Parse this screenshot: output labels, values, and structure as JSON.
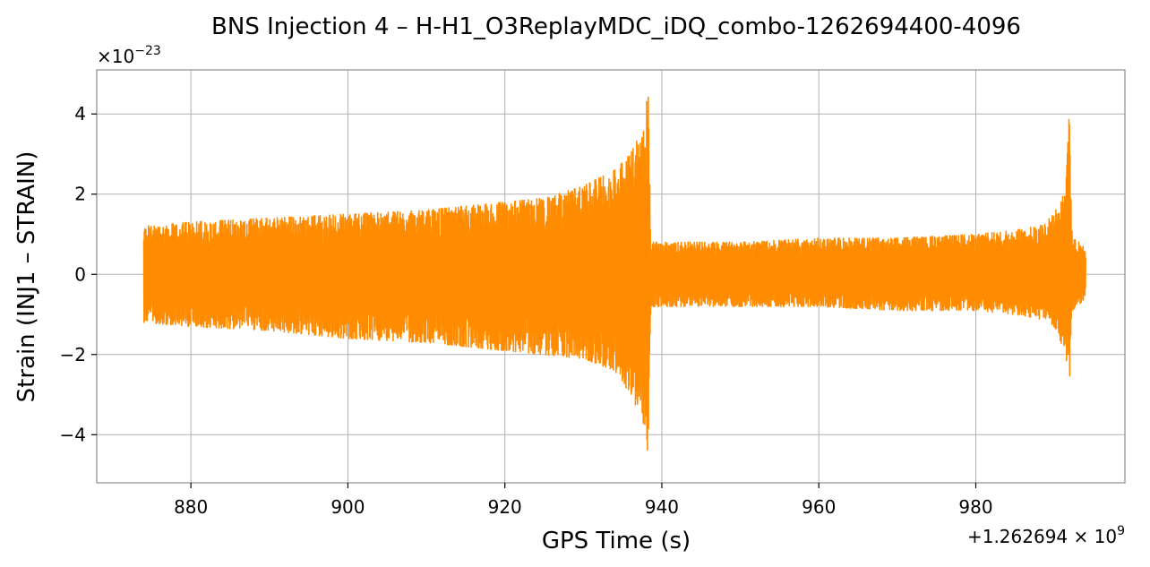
{
  "chart_data": {
    "type": "line",
    "title": "BNS Injection 4 – H-H1_O3ReplayMDC_iDQ_combo-1262694400-4096",
    "xlabel": "GPS Time (s)",
    "ylabel": "Strain (INJ1 – STRAIN)",
    "x_offset_label": "+1.262694 × 10",
    "x_offset_exponent": "9",
    "y_scale_label": "×10",
    "y_scale_exponent": "−23",
    "xlim": [
      1262694868,
      1262694999
    ],
    "ylim": [
      -5.2,
      5.1
    ],
    "x_ticks": [
      880,
      900,
      920,
      940,
      960,
      980
    ],
    "y_ticks": [
      {
        "value": 4,
        "label": "4"
      },
      {
        "value": 2,
        "label": "2"
      },
      {
        "value": 0,
        "label": "0"
      },
      {
        "value": -2,
        "label": "−2"
      },
      {
        "value": -4,
        "label": "−4"
      }
    ],
    "grid": true,
    "color": "#ff8c00",
    "series": [
      {
        "name": "",
        "x_start": 1262694874,
        "x_end": 1262694994,
        "envelope": {
          "x": [
            874,
            880,
            890,
            900,
            910,
            920,
            925,
            930,
            934,
            936,
            937.5,
            938.3,
            938.6,
            940,
            950,
            960,
            970,
            980,
            985,
            988,
            990,
            991.5,
            991.9,
            992.3,
            994
          ],
          "upper": [
            1.2,
            1.3,
            1.4,
            1.5,
            1.6,
            1.8,
            1.9,
            2.2,
            2.6,
            3.0,
            3.6,
            4.6,
            0.8,
            0.8,
            0.8,
            0.9,
            0.9,
            1.0,
            1.1,
            1.2,
            1.5,
            2.3,
            4.0,
            0.9,
            0.7
          ],
          "lower": [
            -1.2,
            -1.3,
            -1.4,
            -1.6,
            -1.7,
            -1.9,
            -2.0,
            -2.1,
            -2.4,
            -3.0,
            -3.6,
            -4.7,
            -0.8,
            -0.8,
            -0.8,
            -0.8,
            -0.9,
            -0.9,
            -1.0,
            -1.1,
            -1.3,
            -2.0,
            -2.9,
            -0.9,
            -0.6
          ]
        }
      }
    ]
  }
}
